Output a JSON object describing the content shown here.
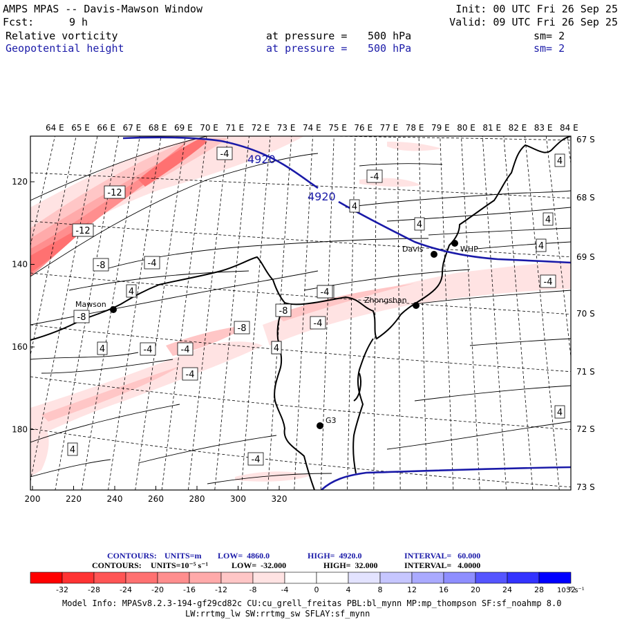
{
  "header": {
    "title": "AMPS MPAS -- Davis-Mawson Window",
    "init": "Init: 00 UTC Fri 26 Sep 25",
    "fcst_label": "Fcst:",
    "fcst_value": "9 h",
    "valid": "Valid: 09 UTC Fri 26 Sep 25",
    "fields": [
      {
        "name": "Relative vorticity",
        "pressure_label": "at pressure =",
        "pressure": "500 hPa",
        "sm": "sm= 2",
        "color": "#000000"
      },
      {
        "name": "Geopotential height",
        "pressure_label": "at pressure =",
        "pressure": "500 hPa",
        "sm": "sm= 2",
        "color": "#1a1aa8"
      }
    ]
  },
  "map": {
    "top_lon_labels": [
      "64 E",
      "65 E",
      "66 E",
      "67 E",
      "68 E",
      "69 E",
      "70 E",
      "71 E",
      "72 E",
      "73 E",
      "74 E",
      "75 E",
      "76 E",
      "77 E",
      "78 E",
      "79 E",
      "80 E",
      "81 E",
      "82 E",
      "83 E",
      "84 E"
    ],
    "right_lat_labels": [
      "67 S",
      "68 S",
      "69 S",
      "70 S",
      "71 S",
      "72 S",
      "73 S"
    ],
    "x_ticks": [
      "200",
      "220",
      "240",
      "260",
      "280",
      "300",
      "320"
    ],
    "y_ticks": [
      "120",
      "140",
      "160",
      "180"
    ],
    "stations": [
      {
        "name": "Mawson"
      },
      {
        "name": "Davis"
      },
      {
        "name": "WHP"
      },
      {
        "name": "Zhongshan"
      },
      {
        "name": "G3"
      }
    ],
    "height_contour_labels": [
      "4920",
      "4920"
    ],
    "vort_contour_labels": [
      "-4",
      "-4",
      "-12",
      "-12",
      "-8",
      "-4",
      "4",
      "-4",
      "-8",
      "-4",
      "-8",
      "-4",
      "4",
      "-4",
      "-4",
      "4",
      "-8",
      "4",
      "4",
      "4",
      "4",
      "-4",
      "4",
      "4",
      "-4",
      "4",
      "4",
      "-4"
    ]
  },
  "footer": {
    "contours_height": {
      "label": "CONTOURS:",
      "units": "UNITS=m",
      "low": "LOW=  4860.0",
      "high": "HIGH=  4920.0",
      "interval": "INTERVAL=   60.000"
    },
    "contours_vort": {
      "label": "CONTOURS:",
      "units": "UNITS=10⁻⁵ s⁻¹",
      "low": "LOW=  -32.000",
      "high": "HIGH=  32.000",
      "interval": "INTERVAL=   4.0000"
    },
    "colorbar": {
      "labels": [
        "-32",
        "-28",
        "-24",
        "-20",
        "-16",
        "-12",
        "-8",
        "-4",
        "0",
        "4",
        "8",
        "12",
        "16",
        "20",
        "24",
        "28",
        "32"
      ],
      "unit": "10⁻⁵ s⁻¹",
      "colors": [
        "#ff0000",
        "#ff3333",
        "#ff5555",
        "#ff7171",
        "#ff8e8e",
        "#ffaaaa",
        "#ffc6c6",
        "#ffe3e3",
        "#ffffff",
        "#ffffff",
        "#e3e3ff",
        "#c6c6ff",
        "#aaaaff",
        "#8e8eff",
        "#5555ff",
        "#3333ff",
        "#0000ff"
      ]
    },
    "model_info_line1": "Model Info: MPASv8.2.3-194-gf29cd82c CU:cu_grell_freitas PBL:bl_mynn MP:mp_thompson SF:sf_noahmp 8.0",
    "model_info_line2": "LW:rrtmg_lw SW:rrtmg_sw SFLAY:sf_mynn"
  }
}
